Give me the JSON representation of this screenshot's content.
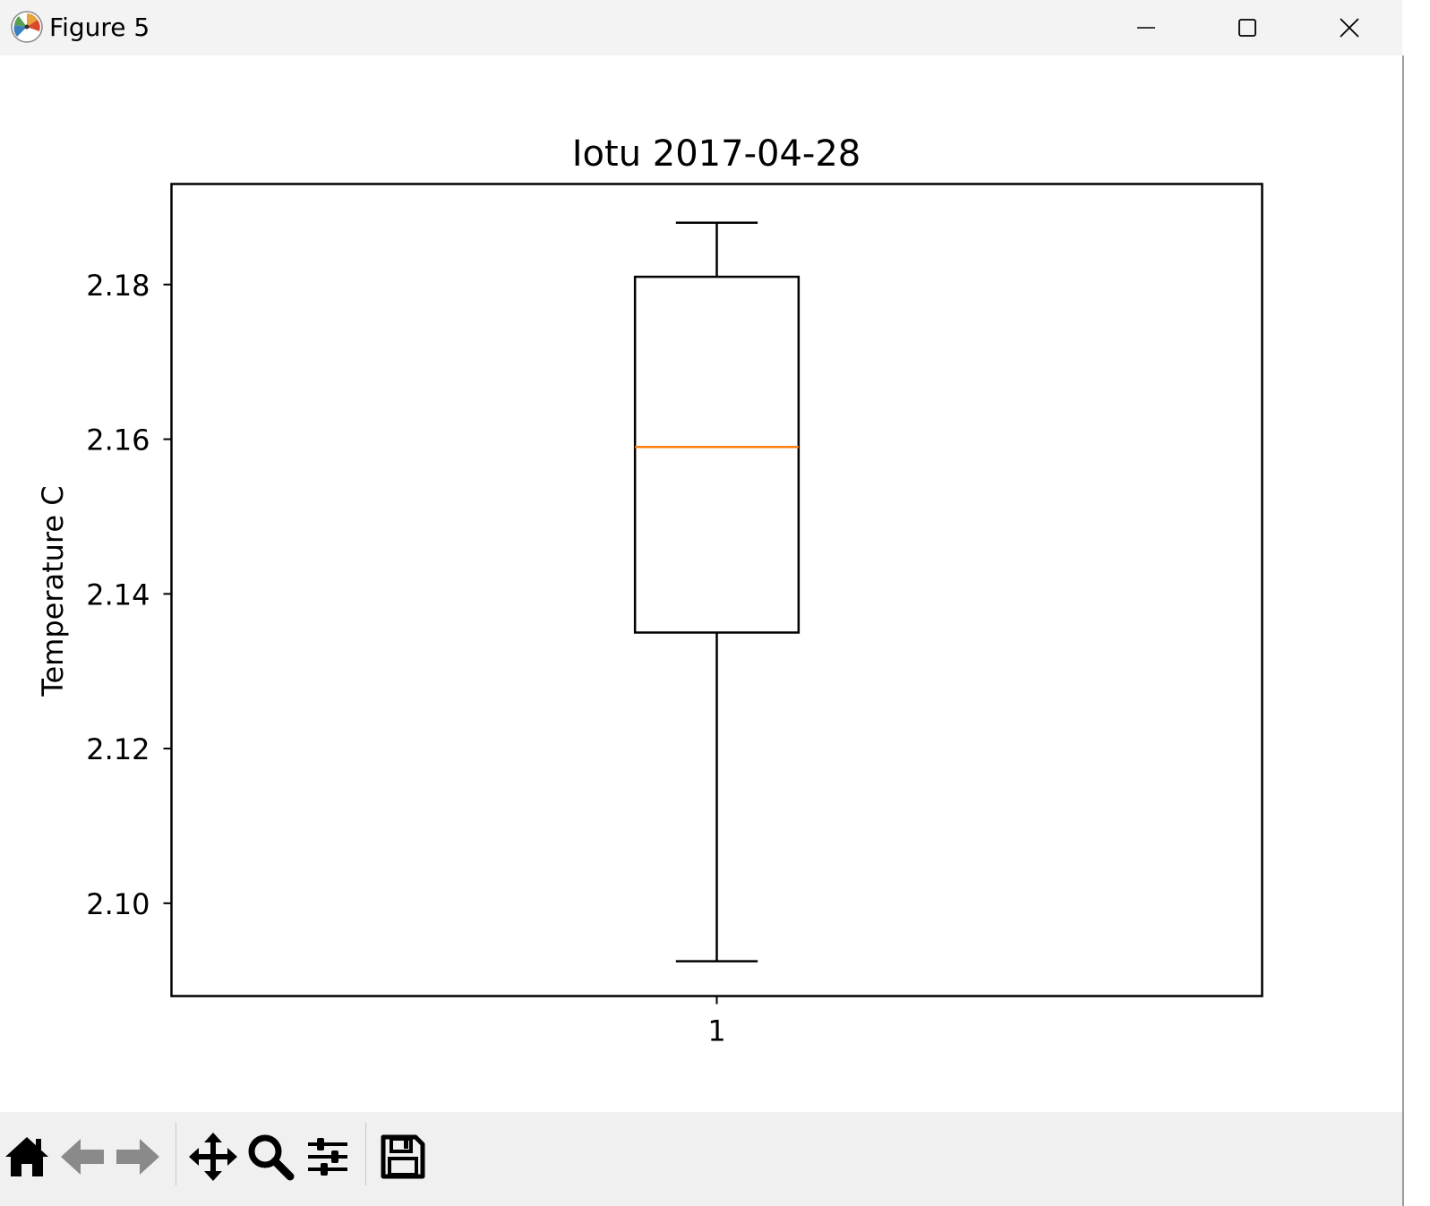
{
  "window": {
    "title": "Figure 5",
    "icons": {
      "app": "matplotlib-icon",
      "minimize": "minimize-icon",
      "maximize": "maximize-icon",
      "close": "close-icon"
    }
  },
  "toolbar": {
    "buttons": [
      {
        "name": "home-button",
        "icon": "home-icon"
      },
      {
        "name": "back-button",
        "icon": "arrow-left-icon"
      },
      {
        "name": "forward-button",
        "icon": "arrow-right-icon"
      },
      {
        "name": "pan-button",
        "icon": "move-icon"
      },
      {
        "name": "zoom-button",
        "icon": "magnifier-icon"
      },
      {
        "name": "configure-subplots-button",
        "icon": "sliders-icon"
      },
      {
        "name": "save-button",
        "icon": "floppy-disk-icon"
      }
    ]
  },
  "chart_data": {
    "type": "box",
    "title": "Iotu 2017-04-28",
    "xlabel": "",
    "ylabel": "Temperature C",
    "categories": [
      "1"
    ],
    "boxes": [
      {
        "whisker_low": 2.0925,
        "q1": 2.135,
        "median": 2.159,
        "q3": 2.181,
        "whisker_high": 2.188
      }
    ],
    "ylim": [
      2.088,
      2.193
    ],
    "yticks": [
      2.1,
      2.12,
      2.14,
      2.16,
      2.18
    ],
    "ytick_labels": [
      "2.10",
      "2.12",
      "2.14",
      "2.16",
      "2.18"
    ],
    "grid": false,
    "colors": {
      "box": "#000000",
      "median": "#ff7f0e"
    }
  }
}
